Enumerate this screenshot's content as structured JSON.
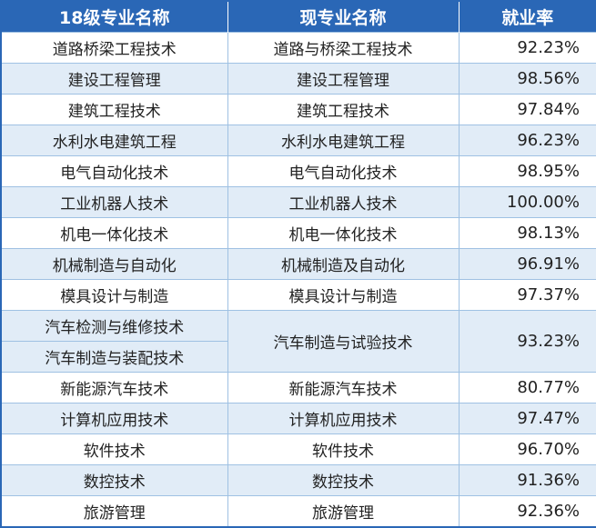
{
  "table": {
    "headers": [
      "18级专业名称",
      "现专业名称",
      "就业率"
    ],
    "rows": [
      {
        "old": "道路桥梁工程技术",
        "current": "道路与桥梁工程技术",
        "rate": "92.23%"
      },
      {
        "old": "建设工程管理",
        "current": "建设工程管理",
        "rate": "98.56%"
      },
      {
        "old": "建筑工程技术",
        "current": "建筑工程技术",
        "rate": "97.84%"
      },
      {
        "old": "水利水电建筑工程",
        "current": "水利水电建筑工程",
        "rate": "96.23%"
      },
      {
        "old": "电气自动化技术",
        "current": "电气自动化技术",
        "rate": "98.95%"
      },
      {
        "old": "工业机器人技术",
        "current": "工业机器人技术",
        "rate": "100.00%"
      },
      {
        "old": "机电一体化技术",
        "current": "机电一体化技术",
        "rate": "98.13%"
      },
      {
        "old": "机械制造与自动化",
        "current": "机械制造及自动化",
        "rate": "96.91%"
      },
      {
        "old": "模具设计与制造",
        "current": "模具设计与制造",
        "rate": "97.37%"
      },
      {
        "old": "汽车检测与维修技术",
        "current": "汽车制造与试验技术",
        "rate": "93.23%"
      },
      {
        "old": "汽车制造与装配技术"
      },
      {
        "old": "新能源汽车技术",
        "current": "新能源汽车技术",
        "rate": "80.77%"
      },
      {
        "old": "计算机应用技术",
        "current": "计算机应用技术",
        "rate": "97.47%"
      },
      {
        "old": "软件技术",
        "current": "软件技术",
        "rate": "96.70%"
      },
      {
        "old": "数控技术",
        "current": "数控技术",
        "rate": "91.36%"
      },
      {
        "old": "旅游管理",
        "current": "旅游管理",
        "rate": "92.36%"
      }
    ]
  }
}
